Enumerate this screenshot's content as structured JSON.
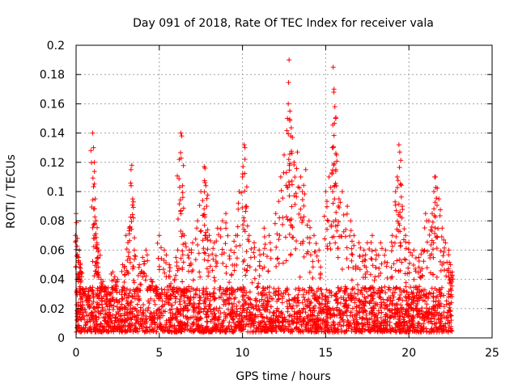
{
  "chart_data": {
    "type": "scatter",
    "title": "Day 091 of 2018, Rate Of TEC Index for receiver vala",
    "xlabel": "GPS time / hours",
    "ylabel": "ROTI / TECUs",
    "xlim": [
      0,
      25
    ],
    "ylim": [
      0,
      0.2
    ],
    "xticks": [
      {
        "value": 0,
        "label": "0"
      },
      {
        "value": 5,
        "label": "5"
      },
      {
        "value": 10,
        "label": "10"
      },
      {
        "value": 15,
        "label": "15"
      },
      {
        "value": 20,
        "label": "20"
      },
      {
        "value": 25,
        "label": "25"
      }
    ],
    "yticks": [
      {
        "value": 0,
        "label": "0"
      },
      {
        "value": 0.02,
        "label": "0.02"
      },
      {
        "value": 0.04,
        "label": "0.04"
      },
      {
        "value": 0.06,
        "label": "0.06"
      },
      {
        "value": 0.08,
        "label": "0.08"
      },
      {
        "value": 0.1,
        "label": "0.1"
      },
      {
        "value": 0.12,
        "label": "0.12"
      },
      {
        "value": 0.14,
        "label": "0.14"
      },
      {
        "value": 0.16,
        "label": "0.16"
      },
      {
        "value": 0.18,
        "label": "0.18"
      },
      {
        "value": 0.2,
        "label": "0.2"
      }
    ],
    "grid": true,
    "marker": "+",
    "marker_color": "#ff0000",
    "series": [
      {
        "name": "ROTI",
        "x": [
          0.0,
          0.08,
          0.15,
          0.2,
          0.25,
          0.3,
          0.5,
          0.7,
          1.0,
          1.05,
          1.1,
          1.15,
          1.2,
          1.25,
          1.3,
          1.35,
          1.5,
          1.7,
          2.0,
          2.2,
          2.5,
          2.8,
          3.0,
          3.2,
          3.3,
          3.35,
          3.4,
          3.5,
          3.8,
          4.0,
          4.2,
          4.5,
          4.8,
          5.0,
          5.3,
          5.6,
          6.0,
          6.2,
          6.3,
          6.35,
          6.4,
          6.5,
          6.8,
          7.0,
          7.3,
          7.5,
          7.7,
          7.75,
          7.8,
          7.85,
          8.0,
          8.3,
          8.5,
          8.8,
          9.0,
          9.3,
          9.6,
          9.8,
          10.0,
          10.1,
          10.15,
          10.2,
          10.4,
          10.7,
          11.0,
          11.3,
          11.6,
          12.0,
          12.3,
          12.5,
          12.7,
          12.75,
          12.8,
          12.85,
          12.9,
          13.0,
          13.1,
          13.3,
          13.5,
          13.6,
          13.8,
          14.0,
          14.3,
          14.6,
          15.0,
          15.2,
          15.4,
          15.45,
          15.5,
          15.55,
          15.6,
          15.65,
          15.8,
          16.0,
          16.3,
          16.5,
          16.7,
          17.0,
          17.3,
          17.5,
          17.8,
          18.0,
          18.3,
          18.6,
          19.0,
          19.2,
          19.3,
          19.4,
          19.45,
          19.5,
          19.6,
          19.8,
          20.0,
          20.3,
          20.6,
          20.8,
          21.0,
          21.2,
          21.4,
          21.5,
          21.55,
          21.6,
          21.8,
          22.0,
          22.2,
          22.4,
          22.5,
          22.6
        ],
        "y": [
          0.085,
          0.068,
          0.055,
          0.06,
          0.05,
          0.045,
          0.03,
          0.025,
          0.14,
          0.13,
          0.12,
          0.095,
          0.08,
          0.065,
          0.055,
          0.06,
          0.04,
          0.035,
          0.03,
          0.045,
          0.04,
          0.05,
          0.07,
          0.075,
          0.115,
          0.118,
          0.095,
          0.06,
          0.05,
          0.055,
          0.06,
          0.04,
          0.035,
          0.07,
          0.06,
          0.05,
          0.055,
          0.122,
          0.14,
          0.138,
          0.104,
          0.07,
          0.06,
          0.065,
          0.08,
          0.1,
          0.117,
          0.116,
          0.104,
          0.09,
          0.07,
          0.065,
          0.075,
          0.08,
          0.085,
          0.06,
          0.07,
          0.1,
          0.11,
          0.132,
          0.13,
          0.09,
          0.07,
          0.065,
          0.06,
          0.075,
          0.07,
          0.085,
          0.11,
          0.125,
          0.15,
          0.16,
          0.19,
          0.155,
          0.138,
          0.137,
          0.12,
          0.127,
          0.11,
          0.1,
          0.115,
          0.08,
          0.07,
          0.06,
          0.1,
          0.11,
          0.13,
          0.185,
          0.17,
          0.158,
          0.15,
          0.125,
          0.095,
          0.1,
          0.09,
          0.08,
          0.07,
          0.065,
          0.06,
          0.065,
          0.07,
          0.06,
          0.065,
          0.06,
          0.07,
          0.1,
          0.11,
          0.132,
          0.127,
          0.105,
          0.09,
          0.07,
          0.065,
          0.06,
          0.055,
          0.06,
          0.085,
          0.08,
          0.085,
          0.1,
          0.11,
          0.11,
          0.095,
          0.075,
          0.065,
          0.06,
          0.05,
          0.045
        ]
      }
    ],
    "dense_baseline": {
      "description_note": "dense noise floor of points spanning all times up to 22.6 h",
      "x_range": [
        0,
        22.6
      ],
      "y_range": [
        0.004,
        0.035
      ],
      "count": 2600
    }
  }
}
